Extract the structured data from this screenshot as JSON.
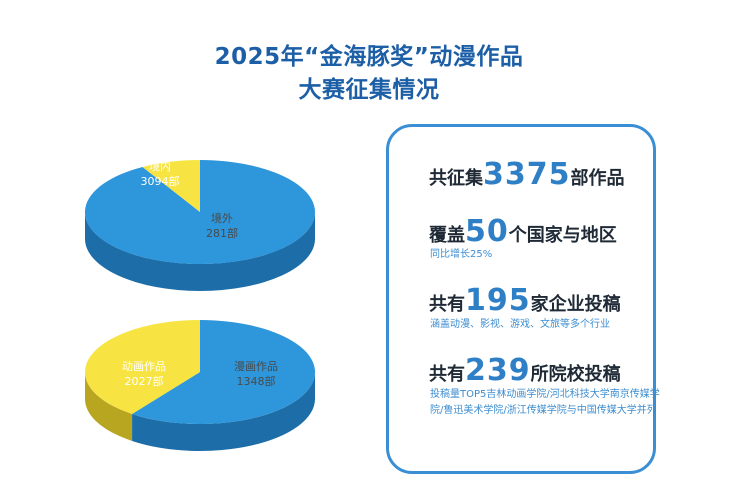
{
  "title": {
    "line1": "2025年“金海豚奖”动漫作品",
    "line2": "大赛征集情况"
  },
  "colors": {
    "title": "#1d5fa6",
    "blue_top": "#2e96db",
    "blue_side": "#1d6ea8",
    "yellow_top": "#f7e443",
    "yellow_side": "#b8a621",
    "card_border": "#3a8fd4",
    "number": "#2e7fc6"
  },
  "chart_data": [
    {
      "type": "pie",
      "style": "3d",
      "slices": [
        {
          "label": "境内",
          "value_label": "3094部",
          "value": 3094,
          "color": "#2e96db"
        },
        {
          "label": "境外",
          "value_label": "281部",
          "value": 281,
          "color": "#f7e443"
        }
      ]
    },
    {
      "type": "pie",
      "style": "3d",
      "slices": [
        {
          "label": "动画作品",
          "value_label": "2027部",
          "value": 2027,
          "color": "#2e96db"
        },
        {
          "label": "漫画作品",
          "value_label": "1348部",
          "value": 1348,
          "color": "#f7e443"
        }
      ]
    }
  ],
  "stats": {
    "total": {
      "prefix": "共征集",
      "number": "3375",
      "suffix": "部作品"
    },
    "countries": {
      "prefix": "覆盖",
      "number": "50",
      "suffix": "个国家与地区",
      "note": "同比增长25%"
    },
    "companies": {
      "prefix": "共有",
      "number": "195",
      "suffix": "家企业投稿",
      "note": "涵盖动漫、影视、游戏、文旅等多个行业"
    },
    "schools": {
      "prefix": "共有",
      "number": "239",
      "suffix": "所院校投稿",
      "note": "投稿量TOP5吉林动画学院/河北科技大学南京传媒学院/鲁迅美术学院/浙江传媒学院与中国传媒大学并列"
    }
  }
}
